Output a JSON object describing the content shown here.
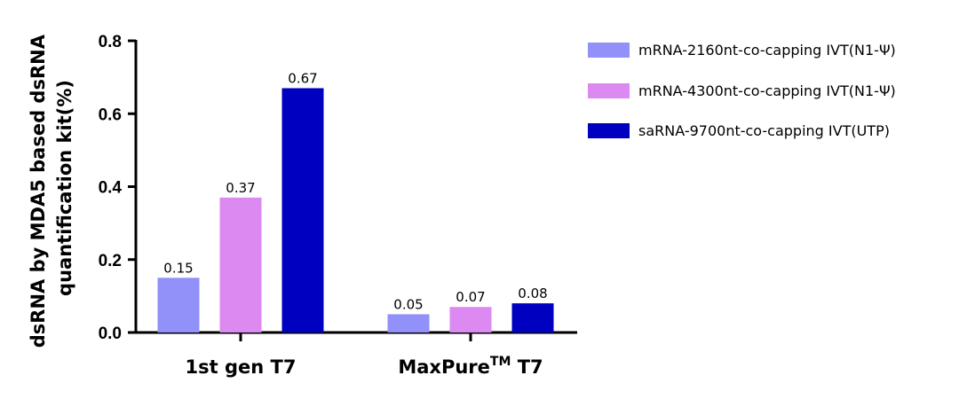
{
  "chart_data": {
    "type": "bar",
    "categories": [
      "1st gen T7",
      "MaxPure"
    ],
    "category_suffix": {
      "superscript": "TM",
      "text": "T7"
    },
    "series": [
      {
        "name": "mRNA-2160nt-co-capping IVT(N1-Ψ)",
        "color": "#9191f9",
        "values": [
          0.15,
          0.05
        ],
        "labels": [
          "0.15",
          "0.05"
        ]
      },
      {
        "name": "mRNA-4300nt-co-capping IVT(N1-Ψ)",
        "color": "#dc8af2",
        "values": [
          0.37,
          0.07
        ],
        "labels": [
          "0.37",
          "0.07"
        ]
      },
      {
        "name": "saRNA-9700nt-co-capping IVT(UTP)",
        "color": "#0000c0",
        "values": [
          0.67,
          0.08
        ],
        "labels": [
          "0.67",
          "0.08"
        ]
      }
    ],
    "ylabel_lines": [
      "dsRNA by MDA5 based dsRNA",
      "quantification kit(%)"
    ],
    "ylim": [
      0,
      0.8
    ],
    "yticks": [
      "0.0",
      "0.2",
      "0.4",
      "0.6",
      "0.8"
    ],
    "ytick_values": [
      0,
      0.2,
      0.4,
      0.6,
      0.8
    ],
    "grid": false,
    "legend_position": "top-right"
  }
}
